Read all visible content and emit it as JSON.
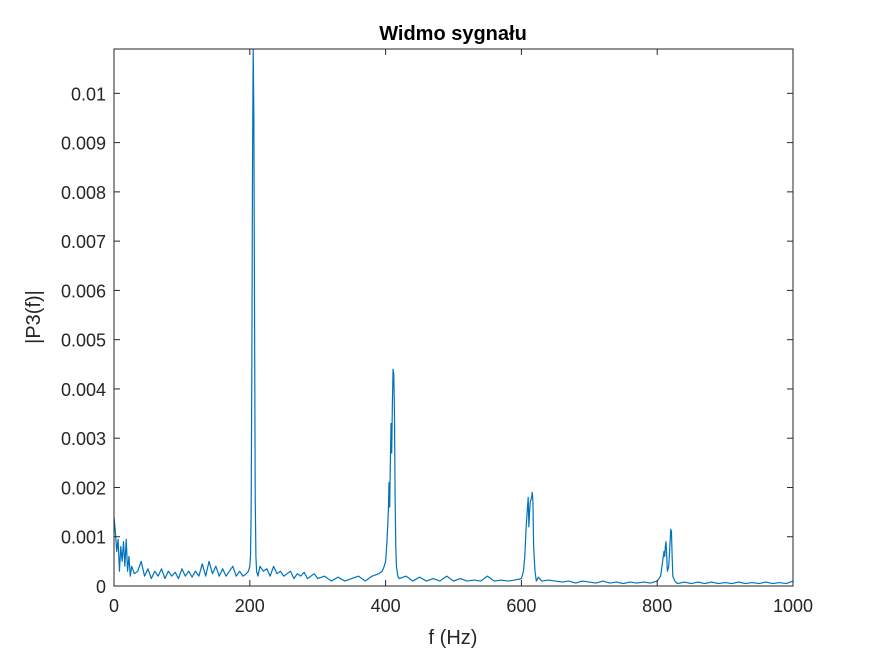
{
  "chart_data": {
    "type": "line",
    "title": "Widmo sygnału",
    "xlabel": "f (Hz)",
    "ylabel": "|P3(f)|",
    "xlim": [
      0,
      1000
    ],
    "ylim": [
      0,
      0.0109
    ],
    "xticks": [
      0,
      200,
      400,
      600,
      800,
      1000
    ],
    "xtick_labels": [
      "0",
      "200",
      "400",
      "600",
      "800",
      "1000"
    ],
    "yticks": [
      0,
      0.001,
      0.002,
      0.003,
      0.004,
      0.005,
      0.006,
      0.007,
      0.008,
      0.009,
      0.01
    ],
    "ytick_labels": [
      "0",
      "0.001",
      "0.002",
      "0.003",
      "0.004",
      "0.005",
      "0.006",
      "0.007",
      "0.008",
      "0.009",
      "0.01"
    ],
    "grid": false,
    "series": [
      {
        "name": "|P3(f)|",
        "color": "#0072BD",
        "points": [
          [
            0,
            0.0014
          ],
          [
            2,
            0.0011
          ],
          [
            4,
            0.0007
          ],
          [
            6,
            0.00095
          ],
          [
            8,
            0.0003
          ],
          [
            10,
            0.0008
          ],
          [
            12,
            0.0005
          ],
          [
            14,
            0.0009
          ],
          [
            16,
            0.0004
          ],
          [
            18,
            0.00095
          ],
          [
            20,
            0.0003
          ],
          [
            22,
            0.0006
          ],
          [
            24,
            0.0002
          ],
          [
            26,
            0.0004
          ],
          [
            30,
            0.00025
          ],
          [
            35,
            0.0003
          ],
          [
            40,
            0.0005
          ],
          [
            45,
            0.0002
          ],
          [
            50,
            0.00035
          ],
          [
            55,
            0.00015
          ],
          [
            60,
            0.0003
          ],
          [
            65,
            0.0002
          ],
          [
            70,
            0.00035
          ],
          [
            75,
            0.00015
          ],
          [
            80,
            0.0003
          ],
          [
            85,
            0.0002
          ],
          [
            90,
            0.00028
          ],
          [
            95,
            0.00015
          ],
          [
            100,
            0.00035
          ],
          [
            105,
            0.0002
          ],
          [
            110,
            0.0003
          ],
          [
            115,
            0.00018
          ],
          [
            120,
            0.0003
          ],
          [
            125,
            0.0002
          ],
          [
            130,
            0.00045
          ],
          [
            135,
            0.0002
          ],
          [
            140,
            0.0005
          ],
          [
            145,
            0.00025
          ],
          [
            150,
            0.0004
          ],
          [
            155,
            0.0002
          ],
          [
            160,
            0.00035
          ],
          [
            165,
            0.0002
          ],
          [
            170,
            0.0003
          ],
          [
            175,
            0.0004
          ],
          [
            180,
            0.0002
          ],
          [
            185,
            0.0003
          ],
          [
            190,
            0.0002
          ],
          [
            195,
            0.00025
          ],
          [
            198,
            0.0003
          ],
          [
            200,
            0.0004
          ],
          [
            201,
            0.0006
          ],
          [
            202,
            0.0015
          ],
          [
            203,
            0.0045
          ],
          [
            204,
            0.0085
          ],
          [
            205,
            0.0109
          ],
          [
            206,
            0.0095
          ],
          [
            207,
            0.0055
          ],
          [
            208,
            0.0018
          ],
          [
            209,
            0.0006
          ],
          [
            210,
            0.0003
          ],
          [
            212,
            0.0002
          ],
          [
            215,
            0.0004
          ],
          [
            220,
            0.0003
          ],
          [
            225,
            0.00035
          ],
          [
            230,
            0.0002
          ],
          [
            235,
            0.0004
          ],
          [
            240,
            0.00025
          ],
          [
            245,
            0.0003
          ],
          [
            250,
            0.0002
          ],
          [
            255,
            0.00025
          ],
          [
            260,
            0.0003
          ],
          [
            265,
            0.00015
          ],
          [
            270,
            0.00025
          ],
          [
            275,
            0.0002
          ],
          [
            280,
            0.00028
          ],
          [
            285,
            0.00015
          ],
          [
            290,
            0.0002
          ],
          [
            295,
            0.00025
          ],
          [
            300,
            0.00015
          ],
          [
            310,
            0.0002
          ],
          [
            320,
            0.0001
          ],
          [
            330,
            0.00018
          ],
          [
            340,
            0.0001
          ],
          [
            350,
            0.00015
          ],
          [
            360,
            0.0002
          ],
          [
            370,
            0.0001
          ],
          [
            380,
            0.0002
          ],
          [
            390,
            0.00025
          ],
          [
            395,
            0.0003
          ],
          [
            398,
            0.0004
          ],
          [
            400,
            0.0005
          ],
          [
            402,
            0.0009
          ],
          [
            404,
            0.0015
          ],
          [
            405,
            0.0021
          ],
          [
            406,
            0.0016
          ],
          [
            407,
            0.0025
          ],
          [
            408,
            0.0033
          ],
          [
            409,
            0.0027
          ],
          [
            410,
            0.0037
          ],
          [
            411,
            0.0044
          ],
          [
            412,
            0.0043
          ],
          [
            413,
            0.0036
          ],
          [
            414,
            0.0018
          ],
          [
            415,
            0.0008
          ],
          [
            416,
            0.0004
          ],
          [
            418,
            0.0002
          ],
          [
            420,
            0.00015
          ],
          [
            430,
            0.0002
          ],
          [
            440,
            0.0001
          ],
          [
            450,
            0.00018
          ],
          [
            460,
            0.0001
          ],
          [
            470,
            0.00015
          ],
          [
            480,
            0.0001
          ],
          [
            490,
            0.0002
          ],
          [
            500,
            0.0001
          ],
          [
            510,
            0.00015
          ],
          [
            520,
            0.0001
          ],
          [
            530,
            0.00012
          ],
          [
            540,
            0.0001
          ],
          [
            550,
            0.0002
          ],
          [
            560,
            0.0001
          ],
          [
            570,
            0.00012
          ],
          [
            580,
            0.0001
          ],
          [
            590,
            0.00012
          ],
          [
            600,
            0.00015
          ],
          [
            603,
            0.0003
          ],
          [
            605,
            0.0006
          ],
          [
            607,
            0.0012
          ],
          [
            609,
            0.0016
          ],
          [
            610,
            0.0018
          ],
          [
            611,
            0.0012
          ],
          [
            612,
            0.0015
          ],
          [
            613,
            0.0017
          ],
          [
            614,
            0.00175
          ],
          [
            615,
            0.0018
          ],
          [
            616,
            0.0019
          ],
          [
            617,
            0.0017
          ],
          [
            618,
            0.0008
          ],
          [
            620,
            0.0003
          ],
          [
            622,
            0.0001
          ],
          [
            625,
            0.00018
          ],
          [
            630,
            0.0001
          ],
          [
            640,
            0.00012
          ],
          [
            650,
            0.0001
          ],
          [
            660,
            8e-05
          ],
          [
            670,
            0.0001
          ],
          [
            680,
            6e-05
          ],
          [
            690,
            0.0001
          ],
          [
            700,
            8e-05
          ],
          [
            710,
            6e-05
          ],
          [
            720,
            0.0001
          ],
          [
            730,
            6e-05
          ],
          [
            740,
            8e-05
          ],
          [
            750,
            5e-05
          ],
          [
            760,
            8e-05
          ],
          [
            770,
            6e-05
          ],
          [
            780,
            8e-05
          ],
          [
            790,
            6e-05
          ],
          [
            800,
            0.0001
          ],
          [
            805,
            0.0002
          ],
          [
            808,
            0.0005
          ],
          [
            810,
            0.0007
          ],
          [
            811,
            0.0006
          ],
          [
            812,
            0.0008
          ],
          [
            813,
            0.0009
          ],
          [
            814,
            0.0006
          ],
          [
            815,
            0.0003
          ],
          [
            817,
            0.0004
          ],
          [
            819,
            0.0009
          ],
          [
            820,
            0.00115
          ],
          [
            821,
            0.0011
          ],
          [
            822,
            0.0006
          ],
          [
            823,
            0.0002
          ],
          [
            826,
            0.0001
          ],
          [
            830,
            5e-05
          ],
          [
            840,
            8e-05
          ],
          [
            850,
            5e-05
          ],
          [
            860,
            8e-05
          ],
          [
            870,
            5e-05
          ],
          [
            880,
            8e-05
          ],
          [
            890,
            5e-05
          ],
          [
            900,
            7e-05
          ],
          [
            910,
            5e-05
          ],
          [
            920,
            8e-05
          ],
          [
            930,
            5e-05
          ],
          [
            940,
            7e-05
          ],
          [
            950,
            5e-05
          ],
          [
            960,
            8e-05
          ],
          [
            970,
            5e-05
          ],
          [
            980,
            7e-05
          ],
          [
            990,
            5e-05
          ],
          [
            1000,
            0.0001
          ]
        ]
      }
    ]
  }
}
